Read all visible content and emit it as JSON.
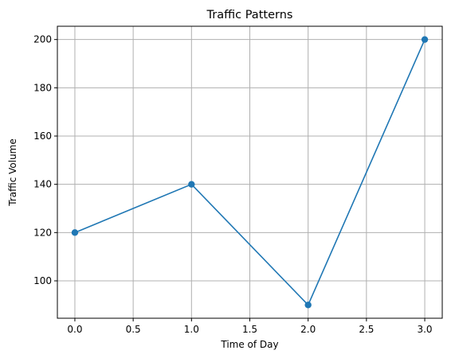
{
  "chart_data": {
    "type": "line",
    "title": "Traffic Patterns",
    "xlabel": "Time of Day",
    "ylabel": "Traffic Volume",
    "xlim": [
      -0.15,
      3.15
    ],
    "ylim": [
      84.5,
      205.5
    ],
    "xticks": [
      0.0,
      0.5,
      1.0,
      1.5,
      2.0,
      2.5,
      3.0
    ],
    "xtick_labels": [
      "0.0",
      "0.5",
      "1.0",
      "1.5",
      "2.0",
      "2.5",
      "3.0"
    ],
    "yticks": [
      100,
      120,
      140,
      160,
      180,
      200
    ],
    "ytick_labels": [
      "100",
      "120",
      "140",
      "160",
      "180",
      "200"
    ],
    "grid": true,
    "marker": "circle",
    "color": "#1f77b4",
    "series": [
      {
        "x": [
          0,
          1,
          2,
          3
        ],
        "y": [
          120,
          140,
          90,
          200
        ]
      }
    ]
  }
}
